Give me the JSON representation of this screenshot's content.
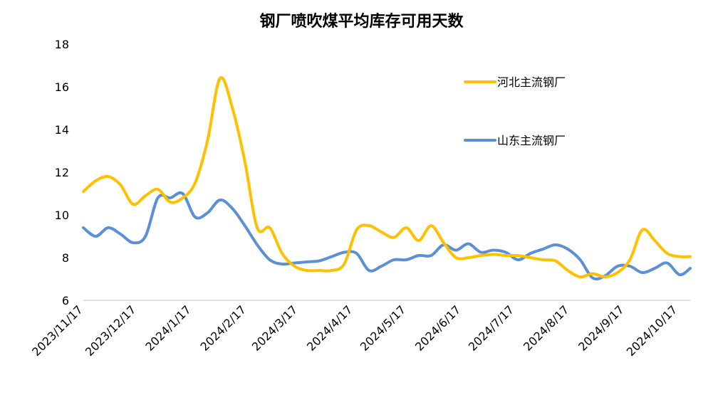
{
  "chart_data": {
    "type": "line",
    "title": "钢厂喷吹煤平均库存可用天数",
    "xlabel": "",
    "ylabel": "",
    "ylim": [
      6,
      18
    ],
    "yticks": [
      6,
      8,
      10,
      12,
      14,
      16,
      18
    ],
    "grid": false,
    "legend_position": "top-right",
    "categories": [
      "2023/11/17",
      "2023/12/17",
      "2024/1/17",
      "2024/2/17",
      "2024/3/17",
      "2024/4/17",
      "2024/5/17",
      "2024/6/17",
      "2024/7/17",
      "2024/8/17",
      "2024/9/17",
      "2024/10/17"
    ],
    "x_range": [
      "2023/11/17",
      "2024/10/24"
    ],
    "series": [
      {
        "name": "河北主流钢厂",
        "color": "#FFC000",
        "points": [
          [
            "2023/11/17",
            11.1
          ],
          [
            "2023/11/24",
            11.6
          ],
          [
            "2023/12/1",
            11.8
          ],
          [
            "2023/12/8",
            11.4
          ],
          [
            "2023/12/15",
            10.5
          ],
          [
            "2023/12/22",
            10.9
          ],
          [
            "2023/12/29",
            11.2
          ],
          [
            "2024/1/5",
            10.6
          ],
          [
            "2024/1/12",
            10.8
          ],
          [
            "2024/1/19",
            11.5
          ],
          [
            "2024/1/26",
            13.5
          ],
          [
            "2024/2/2",
            16.4
          ],
          [
            "2024/2/9",
            15.0
          ],
          [
            "2024/2/16",
            12.5
          ],
          [
            "2024/2/23",
            9.4
          ],
          [
            "2024/3/1",
            9.4
          ],
          [
            "2024/3/8",
            8.2
          ],
          [
            "2024/3/15",
            7.6
          ],
          [
            "2024/3/22",
            7.4
          ],
          [
            "2024/3/29",
            7.4
          ],
          [
            "2024/4/5",
            7.4
          ],
          [
            "2024/4/12",
            7.7
          ],
          [
            "2024/4/19",
            9.3
          ],
          [
            "2024/4/26",
            9.5
          ],
          [
            "2024/5/3",
            9.2
          ],
          [
            "2024/5/10",
            8.95
          ],
          [
            "2024/5/17",
            9.4
          ],
          [
            "2024/5/24",
            8.8
          ],
          [
            "2024/5/31",
            9.5
          ],
          [
            "2024/6/7",
            8.7
          ],
          [
            "2024/6/14",
            8.0
          ],
          [
            "2024/6/21",
            8.0
          ],
          [
            "2024/6/28",
            8.1
          ],
          [
            "2024/7/5",
            8.15
          ],
          [
            "2024/7/12",
            8.1
          ],
          [
            "2024/7/19",
            8.1
          ],
          [
            "2024/7/26",
            8.0
          ],
          [
            "2024/8/2",
            7.9
          ],
          [
            "2024/8/9",
            7.85
          ],
          [
            "2024/8/16",
            7.4
          ],
          [
            "2024/8/23",
            7.1
          ],
          [
            "2024/8/30",
            7.25
          ],
          [
            "2024/9/6",
            7.1
          ],
          [
            "2024/9/13",
            7.3
          ],
          [
            "2024/9/20",
            7.9
          ],
          [
            "2024/9/27",
            9.3
          ],
          [
            "2024/10/4",
            8.8
          ],
          [
            "2024/10/11",
            8.2
          ],
          [
            "2024/10/18",
            8.05
          ],
          [
            "2024/10/24",
            8.05
          ]
        ]
      },
      {
        "name": "山东主流钢厂",
        "color": "#5B8FD6",
        "points": [
          [
            "2023/11/17",
            9.4
          ],
          [
            "2023/11/24",
            9.0
          ],
          [
            "2023/12/1",
            9.4
          ],
          [
            "2023/12/8",
            9.1
          ],
          [
            "2023/12/15",
            8.7
          ],
          [
            "2023/12/22",
            9.0
          ],
          [
            "2023/12/29",
            10.8
          ],
          [
            "2024/1/5",
            10.8
          ],
          [
            "2024/1/12",
            11.0
          ],
          [
            "2024/1/19",
            9.9
          ],
          [
            "2024/1/26",
            10.1
          ],
          [
            "2024/2/2",
            10.7
          ],
          [
            "2024/2/9",
            10.3
          ],
          [
            "2024/2/16",
            9.5
          ],
          [
            "2024/2/23",
            8.6
          ],
          [
            "2024/3/1",
            7.9
          ],
          [
            "2024/3/8",
            7.7
          ],
          [
            "2024/3/15",
            7.75
          ],
          [
            "2024/3/22",
            7.8
          ],
          [
            "2024/3/29",
            7.85
          ],
          [
            "2024/4/5",
            8.05
          ],
          [
            "2024/4/12",
            8.25
          ],
          [
            "2024/4/19",
            8.2
          ],
          [
            "2024/4/26",
            7.4
          ],
          [
            "2024/5/3",
            7.6
          ],
          [
            "2024/5/10",
            7.9
          ],
          [
            "2024/5/17",
            7.9
          ],
          [
            "2024/5/24",
            8.1
          ],
          [
            "2024/5/31",
            8.1
          ],
          [
            "2024/6/7",
            8.6
          ],
          [
            "2024/6/14",
            8.35
          ],
          [
            "2024/6/21",
            8.65
          ],
          [
            "2024/6/28",
            8.25
          ],
          [
            "2024/7/5",
            8.35
          ],
          [
            "2024/7/12",
            8.25
          ],
          [
            "2024/7/19",
            7.9
          ],
          [
            "2024/7/26",
            8.2
          ],
          [
            "2024/8/2",
            8.4
          ],
          [
            "2024/8/9",
            8.6
          ],
          [
            "2024/8/16",
            8.4
          ],
          [
            "2024/8/23",
            7.9
          ],
          [
            "2024/8/30",
            7.05
          ],
          [
            "2024/9/6",
            7.15
          ],
          [
            "2024/9/13",
            7.6
          ],
          [
            "2024/9/20",
            7.6
          ],
          [
            "2024/9/27",
            7.3
          ],
          [
            "2024/10/4",
            7.5
          ],
          [
            "2024/10/11",
            7.75
          ],
          [
            "2024/10/18",
            7.2
          ],
          [
            "2024/10/24",
            7.5
          ]
        ]
      }
    ]
  }
}
